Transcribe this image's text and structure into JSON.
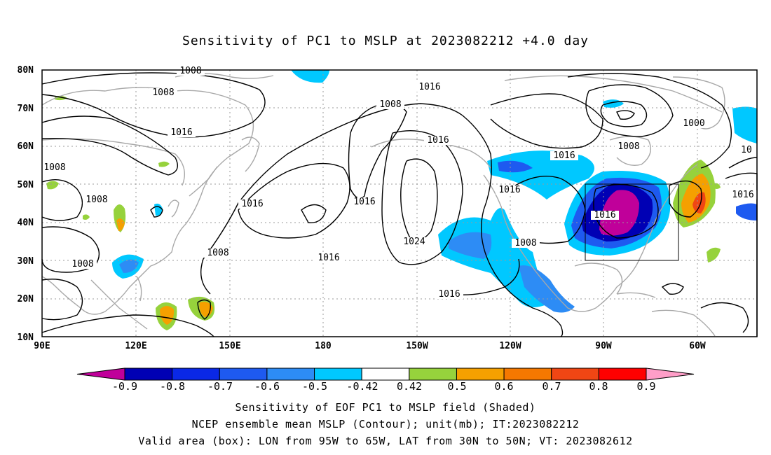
{
  "title": "Sensitivity of PC1 to MSLP at 2023082212 +4.0 day",
  "map": {
    "lat_labels": [
      "80N",
      "70N",
      "60N",
      "50N",
      "40N",
      "30N",
      "20N",
      "10N"
    ],
    "lon_labels": [
      "90E",
      "120E",
      "150E",
      "180",
      "150W",
      "120W",
      "90W",
      "60W"
    ],
    "contour_labels": [
      "1008",
      "1008",
      "1016",
      "1008",
      "1008",
      "1008",
      "1008",
      "1016",
      "1016",
      "1008",
      "1016",
      "1024",
      "1016",
      "1016",
      "1016",
      "1008",
      "1016",
      "1016",
      "1000",
      "1008",
      "10",
      "1016",
      "1008",
      "1016"
    ],
    "valid_box": {
      "lon_from": "95W",
      "lon_to": "65W",
      "lat_from": "30N",
      "lat_to": "50N"
    }
  },
  "colorbar": {
    "labels": [
      "-0.9",
      "-0.8",
      "-0.7",
      "-0.6",
      "-0.5",
      "-0.42",
      "0.42",
      "0.5",
      "0.6",
      "0.7",
      "0.8",
      "0.9"
    ],
    "colors": [
      "#c0009a",
      "#0000b4",
      "#0a28e6",
      "#1e5af0",
      "#2d8cf5",
      "#00c8ff",
      "#ffffff",
      "#96d23c",
      "#f5a000",
      "#f57800",
      "#f04614",
      "#ff0000",
      "#ff9ec8"
    ]
  },
  "captions": {
    "line1": "Sensitivity of EOF PC1 to MSLP field (Shaded)",
    "line2": "NCEP ensemble mean MSLP (Contour); unit(mb); IT:2023082212",
    "line3": "Valid area (box): LON from 95W to 65W, LAT from 30N to 50N; VT: 2023082612"
  }
}
